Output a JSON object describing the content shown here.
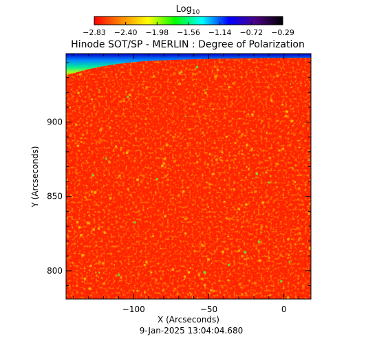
{
  "chart_data": {
    "type": "heatmap",
    "title": "Hinode SOT/SP - MERLIN : Degree of Polarization",
    "colorbar": {
      "label_base": "Log",
      "label_sub": "10",
      "ticks": [
        "-2.83",
        "-2.40",
        "-1.98",
        "-1.56",
        "-1.14",
        "-0.72",
        "-0.29"
      ],
      "range": [
        -2.83,
        -0.29
      ],
      "colormap": [
        "#ff0000",
        "#ff8800",
        "#ffff00",
        "#00ff00",
        "#00ffff",
        "#0000ff",
        "#4b0082",
        "#000000"
      ]
    },
    "xlabel": "X (Arcseconds)",
    "ylabel": "Y (Arcseconds)",
    "xlim": [
      -145,
      18
    ],
    "ylim": [
      781,
      946
    ],
    "x_ticks": [
      -100,
      -50,
      0
    ],
    "x_tick_labels": [
      "−100",
      "−50",
      "0"
    ],
    "y_ticks": [
      800,
      850,
      900
    ],
    "y_tick_labels": [
      "800",
      "850",
      "900"
    ],
    "timestamp": "9-Jan-2025 13:04:04.680",
    "dominant_value": -2.65,
    "limb_value": -1.2
  }
}
